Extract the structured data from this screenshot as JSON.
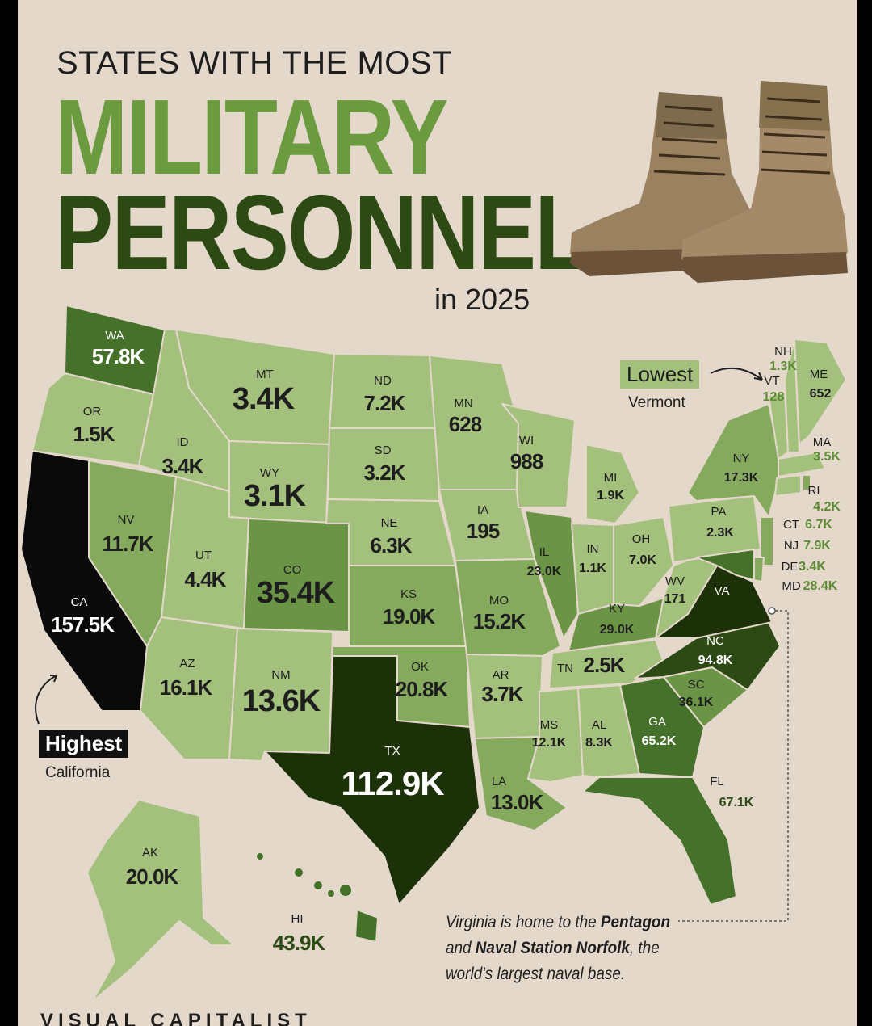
{
  "title": {
    "line1": "STATES WITH THE MOST",
    "line2": "MILITARY",
    "line3": "PERSONNEL",
    "line4": "in 2025"
  },
  "colors": {
    "background": "#e4d8cb",
    "lightest": "#a3c07c",
    "light": "#85aa5e",
    "medium": "#6b9446",
    "dark": "#46712a",
    "darker": "#2d4a14",
    "darkest": "#1c3108",
    "black": "#0a0a0a"
  },
  "legend": {
    "highest_label": "Highest",
    "highest_state": "California",
    "lowest_label": "Lowest",
    "lowest_state": "Vermont"
  },
  "note": {
    "part1": "Virginia is home to the ",
    "bold1": "Pentagon",
    "part2": " and ",
    "bold2": "Naval Station Norfolk",
    "part3": ", the world's largest naval base."
  },
  "footer": {
    "brand": "VISUAL CAPITALIST"
  },
  "states": {
    "WA": {
      "abbr": "WA",
      "value": "57.8K"
    },
    "OR": {
      "abbr": "OR",
      "value": "1.5K"
    },
    "CA": {
      "abbr": "CA",
      "value": "157.5K"
    },
    "NV": {
      "abbr": "NV",
      "value": "11.7K"
    },
    "ID": {
      "abbr": "ID",
      "value": "3.4K"
    },
    "MT": {
      "abbr": "MT",
      "value": "3.4K"
    },
    "WY": {
      "abbr": "WY",
      "value": "3.1K"
    },
    "UT": {
      "abbr": "UT",
      "value": "4.4K"
    },
    "CO": {
      "abbr": "CO",
      "value": "35.4K"
    },
    "AZ": {
      "abbr": "AZ",
      "value": "16.1K"
    },
    "NM": {
      "abbr": "NM",
      "value": "13.6K"
    },
    "ND": {
      "abbr": "ND",
      "value": "7.2K"
    },
    "SD": {
      "abbr": "SD",
      "value": "3.2K"
    },
    "NE": {
      "abbr": "NE",
      "value": "6.3K"
    },
    "KS": {
      "abbr": "KS",
      "value": "19.0K"
    },
    "OK": {
      "abbr": "OK",
      "value": "20.8K"
    },
    "TX": {
      "abbr": "TX",
      "value": "112.9K"
    },
    "MN": {
      "abbr": "MN",
      "value": "628"
    },
    "IA": {
      "abbr": "IA",
      "value": "195"
    },
    "MO": {
      "abbr": "MO",
      "value": "15.2K"
    },
    "AR": {
      "abbr": "AR",
      "value": "3.7K"
    },
    "LA": {
      "abbr": "LA",
      "value": "13.0K"
    },
    "WI": {
      "abbr": "WI",
      "value": "988"
    },
    "IL": {
      "abbr": "IL",
      "value": "23.0K"
    },
    "MI": {
      "abbr": "MI",
      "value": "1.9K"
    },
    "IN": {
      "abbr": "IN",
      "value": "1.1K"
    },
    "OH": {
      "abbr": "OH",
      "value": "7.0K"
    },
    "KY": {
      "abbr": "KY",
      "value": "29.0K"
    },
    "TN": {
      "abbr": "TN",
      "value": "2.5K"
    },
    "MS": {
      "abbr": "MS",
      "value": "12.1K"
    },
    "AL": {
      "abbr": "AL",
      "value": "8.3K"
    },
    "GA": {
      "abbr": "GA",
      "value": "65.2K"
    },
    "FL": {
      "abbr": "FL",
      "value": "67.1K"
    },
    "SC": {
      "abbr": "SC",
      "value": "36.1K"
    },
    "NC": {
      "abbr": "NC",
      "value": "94.8K"
    },
    "VA": {
      "abbr": "VA",
      "value": ""
    },
    "WV": {
      "abbr": "WV",
      "value": "171"
    },
    "PA": {
      "abbr": "PA",
      "value": "2.3K"
    },
    "NY": {
      "abbr": "NY",
      "value": "17.3K"
    },
    "NH": {
      "abbr": "NH",
      "value": "1.3K"
    },
    "VT": {
      "abbr": "VT",
      "value": "128"
    },
    "ME": {
      "abbr": "ME",
      "value": "652"
    },
    "MA": {
      "abbr": "MA",
      "value": "3.5K"
    },
    "RI": {
      "abbr": "RI",
      "value": "4.2K"
    },
    "CT": {
      "abbr": "CT",
      "value": "6.7K"
    },
    "NJ": {
      "abbr": "NJ",
      "value": "7.9K"
    },
    "DE": {
      "abbr": "DE",
      "value": "3.4K"
    },
    "MD": {
      "abbr": "MD",
      "value": "28.4K"
    },
    "AK": {
      "abbr": "AK",
      "value": "20.0K"
    },
    "HI": {
      "abbr": "HI",
      "value": "43.9K"
    }
  }
}
